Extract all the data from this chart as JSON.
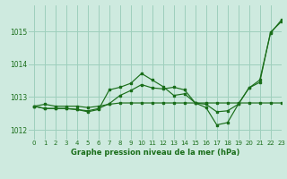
{
  "title": "Graphe pression niveau de la mer (hPa)",
  "background_color": "#ceeadf",
  "grid_color": "#9ecfbc",
  "line_color": "#1a6e1a",
  "xlim": [
    -0.5,
    23
  ],
  "ylim": [
    1011.7,
    1015.8
  ],
  "yticks": [
    1012,
    1013,
    1014,
    1015
  ],
  "xticks": [
    0,
    1,
    2,
    3,
    4,
    5,
    6,
    7,
    8,
    9,
    10,
    11,
    12,
    13,
    14,
    15,
    16,
    17,
    18,
    19,
    20,
    21,
    22,
    23
  ],
  "series": [
    [
      1012.72,
      1012.78,
      1012.72,
      1012.72,
      1012.72,
      1012.68,
      1012.72,
      1012.78,
      1012.82,
      1012.82,
      1012.82,
      1012.82,
      1012.82,
      1012.82,
      1012.82,
      1012.82,
      1012.82,
      1012.82,
      1012.82,
      1012.82,
      1012.82,
      1012.82,
      1012.82,
      1012.82
    ],
    [
      1012.72,
      1012.65,
      1012.65,
      1012.65,
      1012.62,
      1012.58,
      1012.65,
      1012.8,
      1013.05,
      1013.2,
      1013.38,
      1013.28,
      1013.25,
      1013.3,
      1013.22,
      1012.82,
      1012.78,
      1012.55,
      1012.58,
      1012.78,
      1013.28,
      1013.45,
      1014.98,
      1015.3
    ],
    [
      1012.72,
      1012.65,
      1012.65,
      1012.65,
      1012.62,
      1012.55,
      1012.62,
      1013.22,
      1013.3,
      1013.42,
      1013.72,
      1013.52,
      1013.32,
      1013.05,
      1013.1,
      1012.82,
      1012.68,
      1012.15,
      1012.22,
      1012.78,
      1013.28,
      1013.52,
      1014.95,
      1015.35
    ]
  ]
}
